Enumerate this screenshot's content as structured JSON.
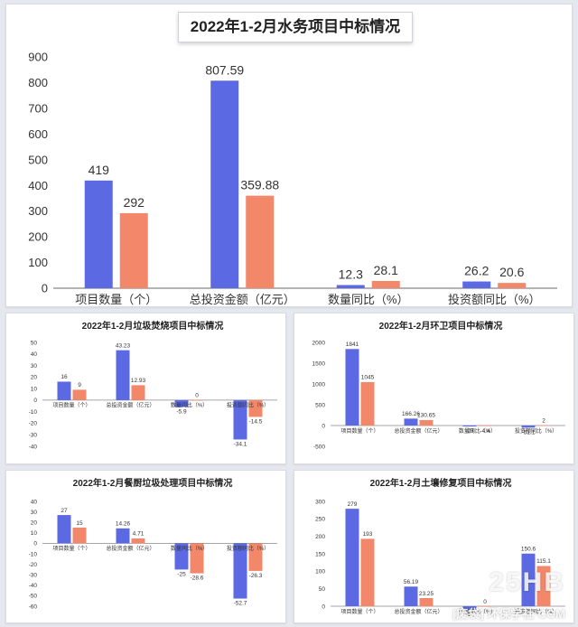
{
  "colors": {
    "series1": "#5b6ae2",
    "series2": "#f2876a",
    "axis": "#888888",
    "grid": "#dddddd",
    "text": "#333333"
  },
  "chart_data": [
    {
      "type": "bar",
      "title": "2022年1-2月水务项目中标情况",
      "categories": [
        "项目数量（个）",
        "总投资金额（亿元）",
        "数量同比（%）",
        "投资额同比（%）"
      ],
      "series": [
        {
          "values": [
            419,
            807.59,
            12.3,
            26.2
          ]
        },
        {
          "values": [
            292,
            359.88,
            28.1,
            20.6
          ]
        }
      ],
      "ylim": [
        0,
        900
      ],
      "yticks": [
        0,
        100,
        200,
        300,
        400,
        500,
        600,
        700,
        800,
        900
      ],
      "grid": false
    },
    {
      "type": "bar",
      "title": "2022年1-2月垃圾焚烧项目中标情况",
      "categories": [
        "项目数量（个）",
        "总投资金额（亿元）",
        "数量同比（%）",
        "投资额同比（%）"
      ],
      "series": [
        {
          "values": [
            16,
            43.23,
            -5.9,
            -34.1
          ]
        },
        {
          "values": [
            9,
            12.93,
            0,
            -14.5
          ]
        }
      ],
      "ylim": [
        -40,
        50
      ],
      "yticks": [
        -40,
        -30,
        -20,
        -10,
        0,
        10,
        20,
        30,
        40,
        50
      ],
      "grid": false
    },
    {
      "type": "bar",
      "title": "2022年1-2月环卫项目中标情况",
      "categories": [
        "项目数量（个）",
        "总投资金额（亿元）",
        "数量同比（%）",
        "投资额同比（%）"
      ],
      "series": [
        {
          "values": [
            1841,
            166.26,
            -23,
            -51.1
          ]
        },
        {
          "values": [
            1045,
            130.65,
            -4.4,
            2
          ]
        }
      ],
      "ylim": [
        -500,
        2000
      ],
      "yticks": [
        -500,
        0,
        500,
        1000,
        1500,
        2000
      ],
      "grid": false
    },
    {
      "type": "bar",
      "title": "2022年1-2月餐厨垃圾处理项目中标情况",
      "categories": [
        "项目数量（个）",
        "总投资金额（亿元）",
        "数量同比（%）",
        "投资额同比（%）"
      ],
      "series": [
        {
          "values": [
            27,
            14.26,
            -25,
            -52.7
          ]
        },
        {
          "values": [
            15,
            4.71,
            -28.6,
            -26.3
          ]
        }
      ],
      "ylim": [
        -60,
        40
      ],
      "yticks": [
        -60,
        -50,
        -40,
        -30,
        -20,
        -10,
        0,
        10,
        20,
        30,
        40
      ],
      "grid": false
    },
    {
      "type": "bar",
      "title": "2022年1-2月土壤修复项目中标情况",
      "categories": [
        "项目数量（个）",
        "总投资金额（亿元）",
        "数量同比（%）",
        "投资额同比（%）"
      ],
      "series": [
        {
          "values": [
            279,
            56.19,
            -10,
            150.6
          ]
        },
        {
          "values": [
            193,
            23.25,
            0,
            115.1
          ]
        }
      ],
      "ylim": [
        0,
        300
      ],
      "yticks": [
        0,
        50,
        100,
        150,
        200,
        250,
        300
      ],
      "grid": false
    }
  ],
  "watermark": {
    "logo": "25HB",
    "site": "[废袋] 环保学社·COM"
  }
}
